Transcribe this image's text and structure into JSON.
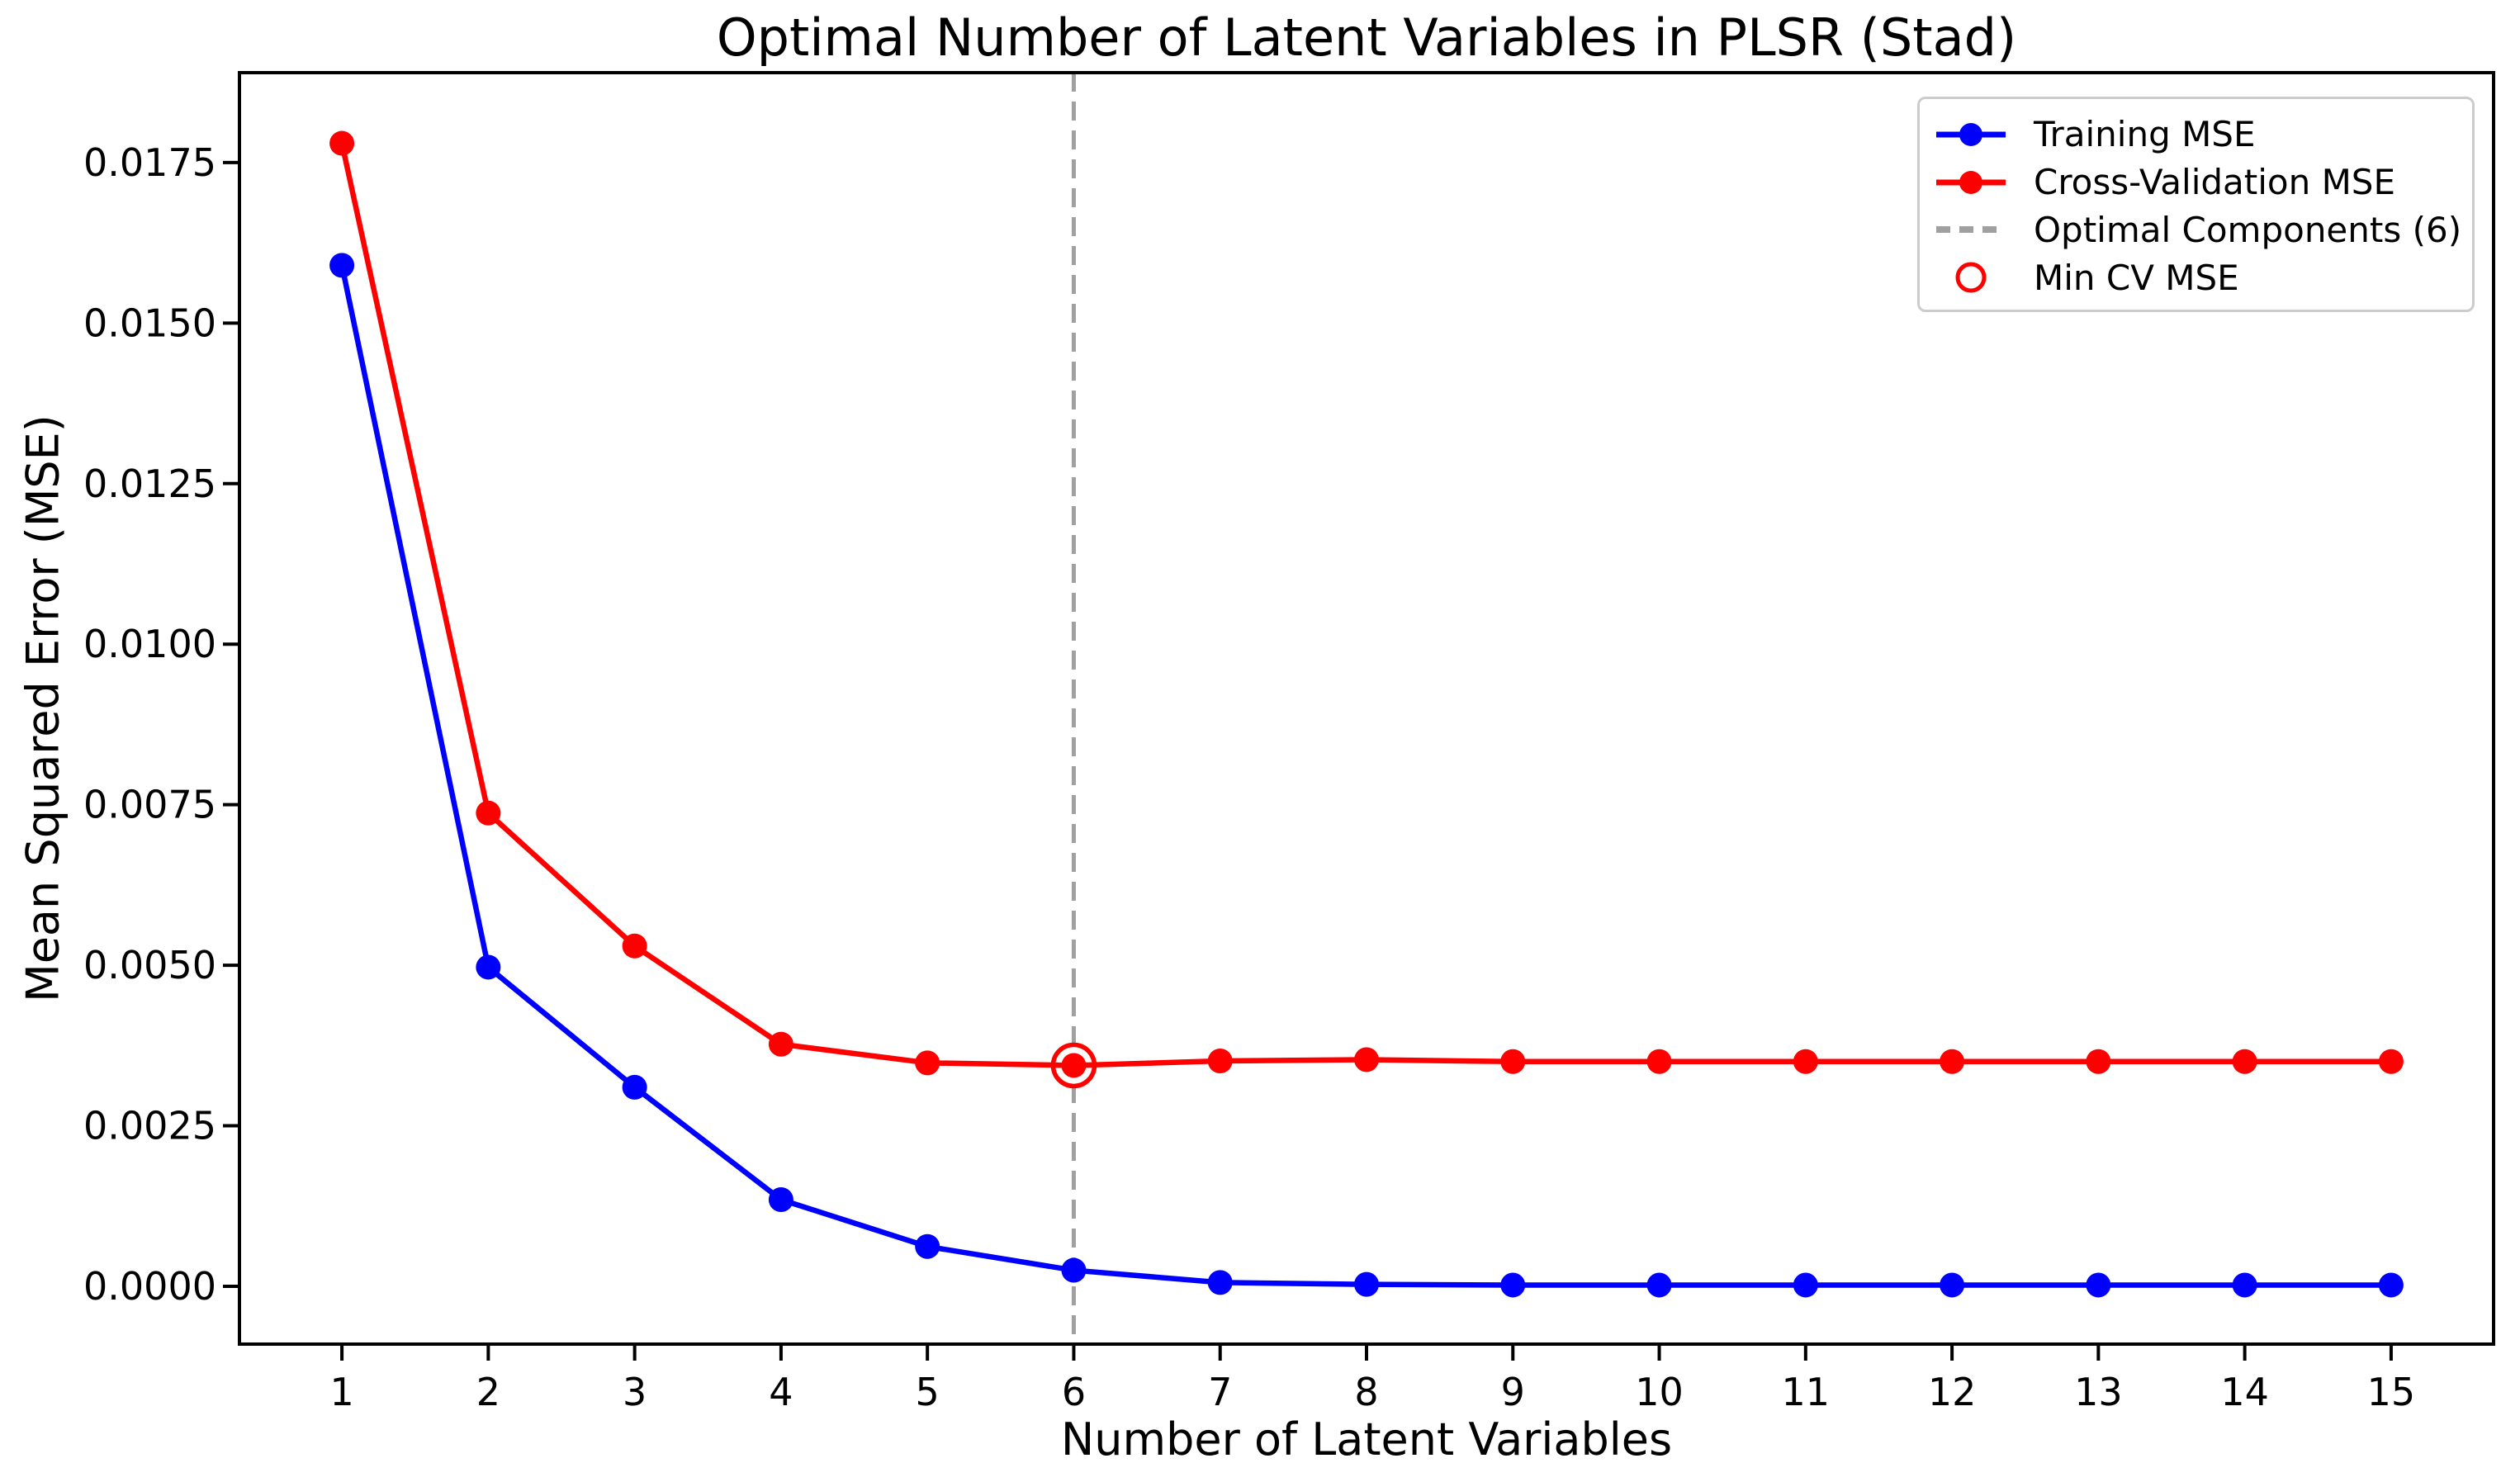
{
  "chart_data": {
    "type": "line",
    "title": "Optimal Number of Latent Variables in PLSR (Stad)",
    "xlabel": "Number of Latent Variables",
    "ylabel": "Mean Squared Error (MSE)",
    "x": [
      1,
      2,
      3,
      4,
      5,
      6,
      7,
      8,
      9,
      10,
      11,
      12,
      13,
      14,
      15
    ],
    "x_tick_labels": [
      "1",
      "2",
      "3",
      "4",
      "5",
      "6",
      "7",
      "8",
      "9",
      "10",
      "11",
      "12",
      "13",
      "14",
      "15"
    ],
    "y_tick_values": [
      0.0,
      0.0025,
      0.005,
      0.0075,
      0.01,
      0.0125,
      0.015,
      0.0175
    ],
    "y_tick_labels": [
      "0.0000",
      "0.0025",
      "0.0050",
      "0.0075",
      "0.0100",
      "0.0125",
      "0.0150",
      "0.0175"
    ],
    "xlim": [
      0.3,
      15.7
    ],
    "ylim": [
      -0.0009,
      0.0189
    ],
    "grid": false,
    "legend_position": "upper right",
    "series": [
      {
        "name": "Training MSE",
        "color": "#0000ff",
        "marker": "circle",
        "values": [
          0.0159,
          0.00497,
          0.0031,
          0.00135,
          0.00062,
          0.00025,
          6e-05,
          3e-05,
          2e-05,
          2e-05,
          2e-05,
          2e-05,
          2e-05,
          2e-05,
          2e-05
        ]
      },
      {
        "name": "Cross-Validation MSE",
        "color": "#ff0000",
        "marker": "circle",
        "values": [
          0.0178,
          0.00737,
          0.0053,
          0.00377,
          0.00348,
          0.00344,
          0.00351,
          0.00353,
          0.0035,
          0.0035,
          0.0035,
          0.0035,
          0.0035,
          0.0035,
          0.0035
        ]
      }
    ],
    "optimal_line": {
      "x": 6,
      "color": "#a0a0a0",
      "style": "dashed"
    },
    "min_cv_marker": {
      "x": 6,
      "y": 0.00344,
      "color": "#ff0000"
    },
    "legend": [
      {
        "label": "Training MSE",
        "swatch": "line-dot",
        "color": "#0000ff"
      },
      {
        "label": "Cross-Validation MSE",
        "swatch": "line-dot",
        "color": "#ff0000"
      },
      {
        "label": "Optimal Components (6)",
        "swatch": "dashed-line",
        "color": "#a0a0a0"
      },
      {
        "label": "Min CV MSE",
        "swatch": "open-circle",
        "color": "#ff0000"
      }
    ]
  }
}
